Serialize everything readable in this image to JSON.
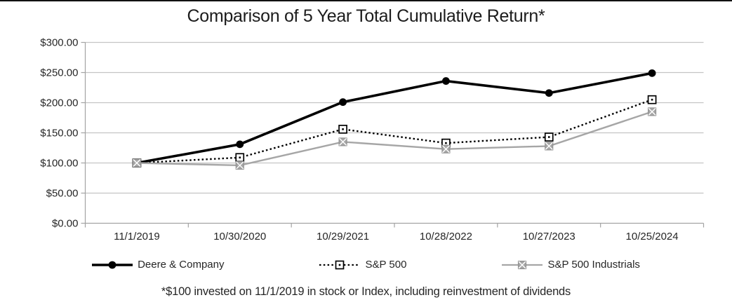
{
  "page": {
    "title": "Comparison of 5 Year Total Cumulative Return*",
    "footnote": "*$100 invested on 11/1/2019 in stock or Index, including reinvestment of dividends"
  },
  "chart_data": {
    "type": "line",
    "title": "Comparison of 5 Year Total Cumulative Return*",
    "footnote": "*$100 invested on 11/1/2019 in stock or Index, including reinvestment of dividends",
    "categories": [
      "11/1/2019",
      "10/30/2020",
      "10/29/2021",
      "10/28/2022",
      "10/27/2023",
      "10/25/2024"
    ],
    "series": [
      {
        "name": "Deere & Company",
        "values": [
          100,
          131,
          201,
          236,
          216,
          249
        ],
        "color": "#000000",
        "style": "solid",
        "marker": "circle"
      },
      {
        "name": "S&P 500",
        "values": [
          100,
          109,
          156,
          133,
          143,
          205
        ],
        "color": "#000000",
        "style": "dotted",
        "marker": "open-square"
      },
      {
        "name": "S&P 500 Industrials",
        "values": [
          100,
          96,
          135,
          123,
          128,
          185
        ],
        "color": "#a6a6a6",
        "style": "solid",
        "marker": "x-square"
      }
    ],
    "y_ticks": [
      "$300.00",
      "$250.00",
      "$200.00",
      "$150.00",
      "$100.00",
      "$50.00",
      "$0.00"
    ],
    "ylim": [
      0,
      300
    ],
    "y_step": 50,
    "grid": true,
    "legend_position": "bottom",
    "colors": {
      "grid": "#c4c4c4",
      "axis": "#a3a3a3",
      "text": "#262626",
      "black_series": "#000000",
      "gray_series": "#a6a6a6"
    }
  }
}
